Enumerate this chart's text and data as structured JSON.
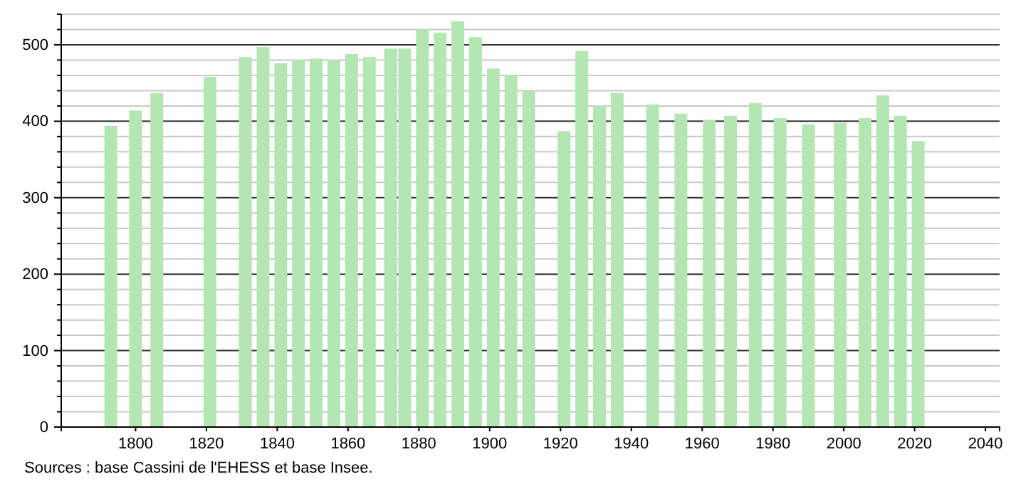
{
  "chart_data": {
    "type": "bar",
    "x": [
      1793,
      1800,
      1806,
      1821,
      1831,
      1836,
      1841,
      1846,
      1851,
      1856,
      1861,
      1866,
      1872,
      1876,
      1881,
      1886,
      1891,
      1896,
      1901,
      1906,
      1911,
      1921,
      1926,
      1931,
      1936,
      1946,
      1954,
      1962,
      1968,
      1975,
      1982,
      1990,
      1999,
      2006,
      2011,
      2016,
      2021
    ],
    "values": [
      394,
      414,
      437,
      458,
      484,
      497,
      476,
      480,
      482,
      480,
      488,
      484,
      495,
      495,
      520,
      516,
      531,
      510,
      469,
      461,
      440,
      387,
      492,
      420,
      437,
      422,
      410,
      402,
      407,
      424,
      404,
      396,
      398,
      404,
      434,
      407,
      374
    ],
    "color": "#b3e6b3",
    "xlim": [
      1779,
      2044
    ],
    "xticks": [
      1800,
      1820,
      1840,
      1860,
      1880,
      1900,
      1920,
      1940,
      1960,
      1980,
      2000,
      2020,
      2040
    ],
    "ylim": [
      0,
      540
    ],
    "yticks": [
      0,
      {
        "value": 20,
        "label": null
      },
      {
        "value": 40,
        "label": null
      },
      {
        "value": 60,
        "label": null
      },
      {
        "value": 80,
        "label": null
      },
      100,
      {
        "value": 120,
        "label": null
      },
      {
        "value": 140,
        "label": null
      },
      {
        "value": 160,
        "label": null
      },
      {
        "value": 180,
        "label": null
      },
      200,
      {
        "value": 220,
        "label": null
      },
      {
        "value": 240,
        "label": null
      },
      {
        "value": 260,
        "label": null
      },
      {
        "value": 280,
        "label": null
      },
      300,
      {
        "value": 320,
        "label": null
      },
      {
        "value": 340,
        "label": null
      },
      {
        "value": 360,
        "label": null
      },
      {
        "value": 380,
        "label": null
      },
      400,
      {
        "value": 420,
        "label": null
      },
      {
        "value": 440,
        "label": null
      },
      {
        "value": 460,
        "label": null
      },
      {
        "value": 480,
        "label": null
      },
      500,
      {
        "value": 520,
        "label": null
      },
      {
        "value": 540,
        "label": null
      }
    ],
    "grid": "y",
    "annotations": [
      "Sources : base Cassini de l'EHESS et base Insee."
    ]
  }
}
